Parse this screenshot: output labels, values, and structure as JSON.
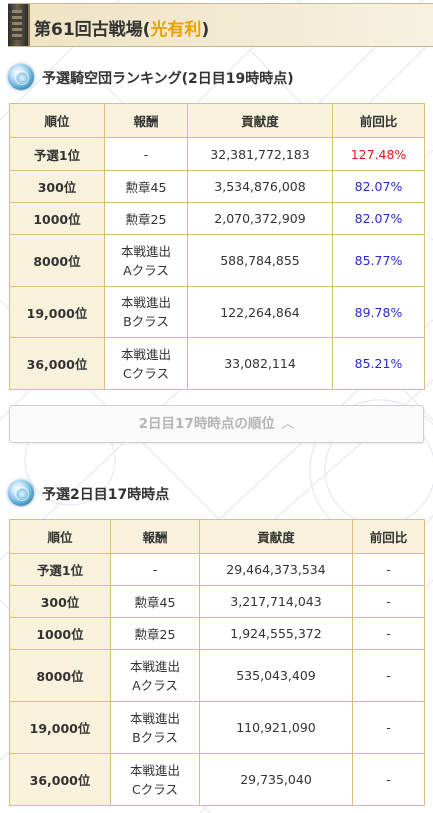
{
  "header": {
    "title_prefix": "第61回古戦場(",
    "title_accent": "光有利",
    "title_suffix": ")"
  },
  "section1": {
    "title": "予選騎空団ランキング(2日目19時時点)",
    "headers": [
      "順位",
      "報酬",
      "貢献度",
      "前回比"
    ],
    "rows": [
      {
        "rank": "予選1位",
        "reward1": "-",
        "reward2": "",
        "score": "32,381,772,183",
        "ratio": "127.48%"
      },
      {
        "rank": "300位",
        "reward1": "勲章45",
        "reward2": "",
        "score": "3,534,876,008",
        "ratio": "82.07%"
      },
      {
        "rank": "1000位",
        "reward1": "勲章25",
        "reward2": "",
        "score": "2,070,372,909",
        "ratio": "82.07%"
      },
      {
        "rank": "8000位",
        "reward1": "本戦進出",
        "reward2": "Aクラス",
        "score": "588,784,855",
        "ratio": "85.77%"
      },
      {
        "rank": "19,000位",
        "reward1": "本戦進出",
        "reward2": "Bクラス",
        "score": "122,264,864",
        "ratio": "89.78%"
      },
      {
        "rank": "36,000位",
        "reward1": "本戦進出",
        "reward2": "Cクラス",
        "score": "33,082,114",
        "ratio": "85.21%"
      }
    ]
  },
  "toggle": {
    "label": "2日目17時時点の順位",
    "icon": "chevron-up-icon"
  },
  "section2": {
    "title": "予選2日目17時時点",
    "headers": [
      "順位",
      "報酬",
      "貢献度",
      "前回比"
    ],
    "rows": [
      {
        "rank": "予選1位",
        "reward1": "-",
        "reward2": "",
        "score": "29,464,373,534",
        "ratio": "-"
      },
      {
        "rank": "300位",
        "reward1": "勲章45",
        "reward2": "",
        "score": "3,217,714,043",
        "ratio": "-"
      },
      {
        "rank": "1000位",
        "reward1": "勲章25",
        "reward2": "",
        "score": "1,924,555,372",
        "ratio": "-"
      },
      {
        "rank": "8000位",
        "reward1": "本戦進出",
        "reward2": "Aクラス",
        "score": "535,043,409",
        "ratio": "-"
      },
      {
        "rank": "19,000位",
        "reward1": "本戦進出",
        "reward2": "Bクラス",
        "score": "110,921,090",
        "ratio": "-"
      },
      {
        "rank": "36,000位",
        "reward1": "本戦進出",
        "reward2": "Cクラス",
        "score": "29,735,040",
        "ratio": "-"
      }
    ]
  },
  "colors": {
    "accent": "#e8a200",
    "increase": "#e01b1b",
    "decrease": "#2a2ad0",
    "table_border": "#d8bf7a",
    "header_bg": "#f8f2dd"
  }
}
